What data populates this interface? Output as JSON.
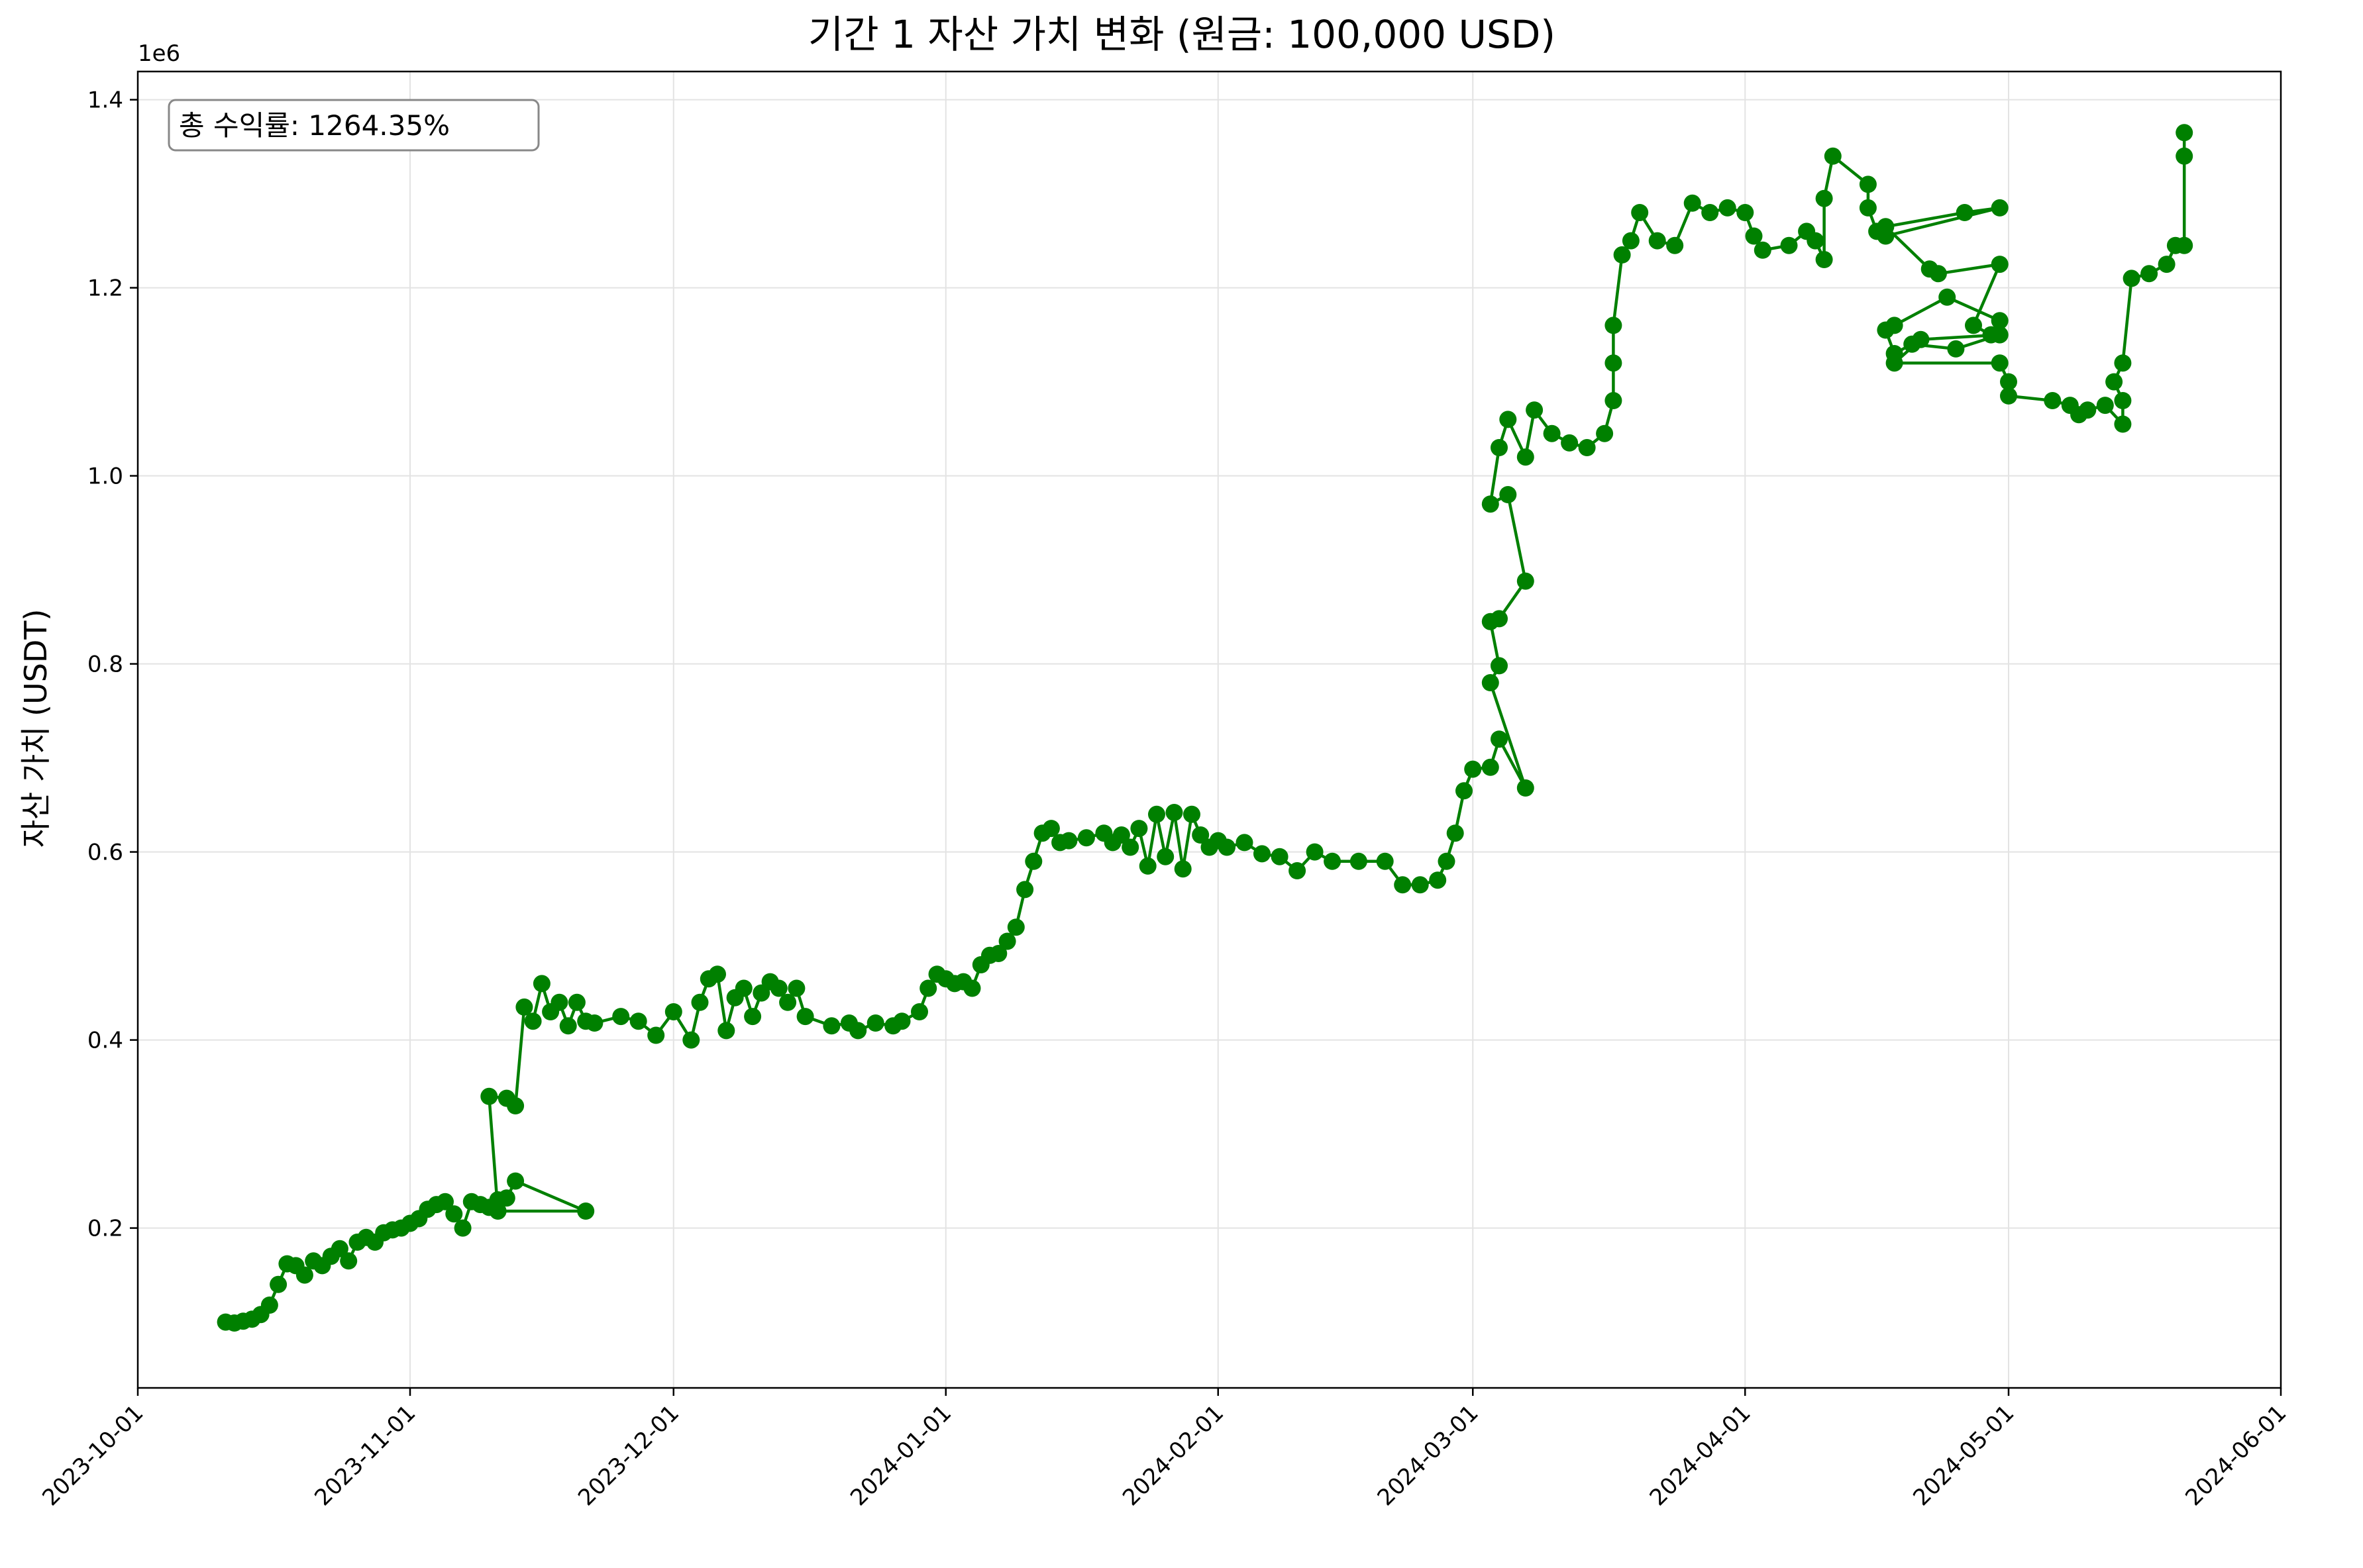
{
  "chart_data": {
    "type": "line",
    "title": "기간 1 자산 가치 변화 (원금: 100,000 USD)",
    "xlabel": "",
    "ylabel": "자산 가치 (USDT)",
    "y_offset_label": "1e6",
    "y_multiplier": 1000000,
    "ylim": [
      30000,
      1430000
    ],
    "xlim": [
      "2023-10-01",
      "2024-06-01"
    ],
    "x_ticks": [
      "2023-10-01",
      "2023-11-01",
      "2023-12-01",
      "2024-01-01",
      "2024-02-01",
      "2024-03-01",
      "2024-04-01",
      "2024-05-01",
      "2024-06-01"
    ],
    "y_ticks": [
      200000,
      400000,
      600000,
      800000,
      1000000,
      1200000,
      1400000
    ],
    "y_tick_labels": [
      "0.2",
      "0.4",
      "0.6",
      "0.8",
      "1.0",
      "1.2",
      "1.4"
    ],
    "grid": true,
    "color": "#008000",
    "marker": "circle",
    "annotation": "총 수익률: 1264.35%",
    "annotation_position": "top-left",
    "series": [
      {
        "points": [
          [
            "2023-10-11",
            100000
          ],
          [
            "2023-10-12",
            99000
          ],
          [
            "2023-10-13",
            101000
          ],
          [
            "2023-10-14",
            103000
          ],
          [
            "2023-10-15",
            108000
          ],
          [
            "2023-10-16",
            118000
          ],
          [
            "2023-10-17",
            140000
          ],
          [
            "2023-10-18",
            162000
          ],
          [
            "2023-10-19",
            160000
          ],
          [
            "2023-10-20",
            150000
          ],
          [
            "2023-10-21",
            165000
          ],
          [
            "2023-10-22",
            160000
          ],
          [
            "2023-10-23",
            170000
          ],
          [
            "2023-10-24",
            178000
          ],
          [
            "2023-10-25",
            165000
          ],
          [
            "2023-10-26",
            185000
          ],
          [
            "2023-10-27",
            190000
          ],
          [
            "2023-10-28",
            185000
          ],
          [
            "2023-10-29",
            195000
          ],
          [
            "2023-10-30",
            198000
          ],
          [
            "2023-10-31",
            200000
          ],
          [
            "2023-11-01",
            205000
          ],
          [
            "2023-11-02",
            210000
          ],
          [
            "2023-11-03",
            220000
          ],
          [
            "2023-11-04",
            225000
          ],
          [
            "2023-11-05",
            228000
          ],
          [
            "2023-11-06",
            215000
          ],
          [
            "2023-11-07",
            200000
          ],
          [
            "2023-11-08",
            228000
          ],
          [
            "2023-11-09",
            225000
          ],
          [
            "2023-11-10",
            222000
          ],
          [
            "2023-11-11",
            230000
          ],
          [
            "2023-11-12",
            232000
          ],
          [
            "2023-11-13",
            250000
          ],
          [
            "2023-11-21",
            218000
          ],
          [
            "2023-11-11",
            218000
          ],
          [
            "2023-11-10",
            340000
          ],
          [
            "2023-11-12",
            338000
          ],
          [
            "2023-11-13",
            330000
          ],
          [
            "2023-11-14",
            435000
          ],
          [
            "2023-11-15",
            420000
          ],
          [
            "2023-11-16",
            460000
          ],
          [
            "2023-11-17",
            430000
          ],
          [
            "2023-11-18",
            440000
          ],
          [
            "2023-11-19",
            415000
          ],
          [
            "2023-11-20",
            440000
          ],
          [
            "2023-11-21",
            420000
          ],
          [
            "2023-11-22",
            418000
          ],
          [
            "2023-11-25",
            425000
          ],
          [
            "2023-11-27",
            420000
          ],
          [
            "2023-11-29",
            405000
          ],
          [
            "2023-12-01",
            430000
          ],
          [
            "2023-12-03",
            400000
          ],
          [
            "2023-12-04",
            440000
          ],
          [
            "2023-12-05",
            465000
          ],
          [
            "2023-12-06",
            470000
          ],
          [
            "2023-12-07",
            410000
          ],
          [
            "2023-12-08",
            445000
          ],
          [
            "2023-12-09",
            455000
          ],
          [
            "2023-12-10",
            425000
          ],
          [
            "2023-12-11",
            450000
          ],
          [
            "2023-12-12",
            462000
          ],
          [
            "2023-12-13",
            455000
          ],
          [
            "2023-12-14",
            440000
          ],
          [
            "2023-12-15",
            455000
          ],
          [
            "2023-12-16",
            425000
          ],
          [
            "2023-12-19",
            415000
          ],
          [
            "2023-12-21",
            418000
          ],
          [
            "2023-12-22",
            410000
          ],
          [
            "2023-12-24",
            418000
          ],
          [
            "2023-12-26",
            415000
          ],
          [
            "2023-12-27",
            420000
          ],
          [
            "2023-12-29",
            430000
          ],
          [
            "2023-12-30",
            455000
          ],
          [
            "2023-12-31",
            470000
          ],
          [
            "2024-01-01",
            465000
          ],
          [
            "2024-01-02",
            460000
          ],
          [
            "2024-01-03",
            462000
          ],
          [
            "2024-01-04",
            455000
          ],
          [
            "2024-01-05",
            480000
          ],
          [
            "2024-01-06",
            490000
          ],
          [
            "2024-01-07",
            492000
          ],
          [
            "2024-01-08",
            505000
          ],
          [
            "2024-01-09",
            520000
          ],
          [
            "2024-01-10",
            560000
          ],
          [
            "2024-01-11",
            590000
          ],
          [
            "2024-01-12",
            620000
          ],
          [
            "2024-01-13",
            625000
          ],
          [
            "2024-01-14",
            610000
          ],
          [
            "2024-01-15",
            612000
          ],
          [
            "2024-01-17",
            615000
          ],
          [
            "2024-01-19",
            620000
          ],
          [
            "2024-01-20",
            610000
          ],
          [
            "2024-01-21",
            618000
          ],
          [
            "2024-01-22",
            605000
          ],
          [
            "2024-01-23",
            625000
          ],
          [
            "2024-01-24",
            585000
          ],
          [
            "2024-01-25",
            640000
          ],
          [
            "2024-01-26",
            595000
          ],
          [
            "2024-01-27",
            642000
          ],
          [
            "2024-01-28",
            582000
          ],
          [
            "2024-01-29",
            640000
          ],
          [
            "2024-01-30",
            618000
          ],
          [
            "2024-01-31",
            605000
          ],
          [
            "2024-02-01",
            612000
          ],
          [
            "2024-02-02",
            605000
          ],
          [
            "2024-02-04",
            610000
          ],
          [
            "2024-02-06",
            598000
          ],
          [
            "2024-02-08",
            595000
          ],
          [
            "2024-02-10",
            580000
          ],
          [
            "2024-02-12",
            600000
          ],
          [
            "2024-02-14",
            590000
          ],
          [
            "2024-02-17",
            590000
          ],
          [
            "2024-02-20",
            590000
          ],
          [
            "2024-02-22",
            565000
          ],
          [
            "2024-02-24",
            565000
          ],
          [
            "2024-02-26",
            570000
          ],
          [
            "2024-02-27",
            590000
          ],
          [
            "2024-02-28",
            620000
          ],
          [
            "2024-02-29",
            665000
          ],
          [
            "2024-03-01",
            688000
          ],
          [
            "2024-03-03",
            690000
          ],
          [
            "2024-03-04",
            720000
          ],
          [
            "2024-03-07",
            668000
          ],
          [
            "2024-03-03",
            780000
          ],
          [
            "2024-03-04",
            798000
          ],
          [
            "2024-03-03",
            845000
          ],
          [
            "2024-03-04",
            848000
          ],
          [
            "2024-03-07",
            888000
          ],
          [
            "2024-03-05",
            980000
          ],
          [
            "2024-03-03",
            970000
          ],
          [
            "2024-03-04",
            1030000
          ],
          [
            "2024-03-05",
            1060000
          ],
          [
            "2024-03-07",
            1020000
          ],
          [
            "2024-03-08",
            1070000
          ],
          [
            "2024-03-10",
            1045000
          ],
          [
            "2024-03-12",
            1035000
          ],
          [
            "2024-03-14",
            1030000
          ],
          [
            "2024-03-16",
            1045000
          ],
          [
            "2024-03-17",
            1080000
          ],
          [
            "2024-03-17",
            1120000
          ],
          [
            "2024-03-17",
            1160000
          ],
          [
            "2024-03-18",
            1235000
          ],
          [
            "2024-03-19",
            1250000
          ],
          [
            "2024-03-20",
            1280000
          ],
          [
            "2024-03-22",
            1250000
          ],
          [
            "2024-03-24",
            1245000
          ],
          [
            "2024-03-26",
            1290000
          ],
          [
            "2024-03-28",
            1280000
          ],
          [
            "2024-03-30",
            1285000
          ],
          [
            "2024-04-01",
            1280000
          ],
          [
            "2024-04-02",
            1255000
          ],
          [
            "2024-04-03",
            1240000
          ],
          [
            "2024-04-06",
            1245000
          ],
          [
            "2024-04-08",
            1260000
          ],
          [
            "2024-04-09",
            1250000
          ],
          [
            "2024-04-10",
            1230000
          ],
          [
            "2024-04-10",
            1295000
          ],
          [
            "2024-04-11",
            1340000
          ],
          [
            "2024-04-15",
            1310000
          ],
          [
            "2024-04-15",
            1285000
          ],
          [
            "2024-04-16",
            1260000
          ],
          [
            "2024-04-17",
            1255000
          ],
          [
            "2024-04-30",
            1285000
          ],
          [
            "2024-04-26",
            1280000
          ],
          [
            "2024-04-17",
            1265000
          ],
          [
            "2024-04-22",
            1220000
          ],
          [
            "2024-04-23",
            1215000
          ],
          [
            "2024-04-30",
            1225000
          ],
          [
            "2024-04-27",
            1160000
          ],
          [
            "2024-04-29",
            1150000
          ],
          [
            "2024-04-30",
            1165000
          ],
          [
            "2024-04-24",
            1190000
          ],
          [
            "2024-04-18",
            1160000
          ],
          [
            "2024-04-17",
            1155000
          ],
          [
            "2024-04-18",
            1130000
          ],
          [
            "2024-04-20",
            1140000
          ],
          [
            "2024-04-25",
            1135000
          ],
          [
            "2024-04-30",
            1150000
          ],
          [
            "2024-04-21",
            1145000
          ],
          [
            "2024-04-18",
            1120000
          ],
          [
            "2024-04-30",
            1120000
          ],
          [
            "2024-05-01",
            1100000
          ],
          [
            "2024-05-01",
            1085000
          ],
          [
            "2024-05-06",
            1080000
          ],
          [
            "2024-05-08",
            1075000
          ],
          [
            "2024-05-09",
            1065000
          ],
          [
            "2024-05-10",
            1070000
          ],
          [
            "2024-05-12",
            1075000
          ],
          [
            "2024-05-14",
            1055000
          ],
          [
            "2024-05-14",
            1080000
          ],
          [
            "2024-05-13",
            1100000
          ],
          [
            "2024-05-14",
            1120000
          ],
          [
            "2024-05-15",
            1210000
          ],
          [
            "2024-05-17",
            1215000
          ],
          [
            "2024-05-19",
            1225000
          ],
          [
            "2024-05-20",
            1245000
          ],
          [
            "2024-05-21",
            1245000
          ],
          [
            "2024-05-21",
            1340000
          ],
          [
            "2024-05-21",
            1365000
          ]
        ]
      }
    ]
  }
}
